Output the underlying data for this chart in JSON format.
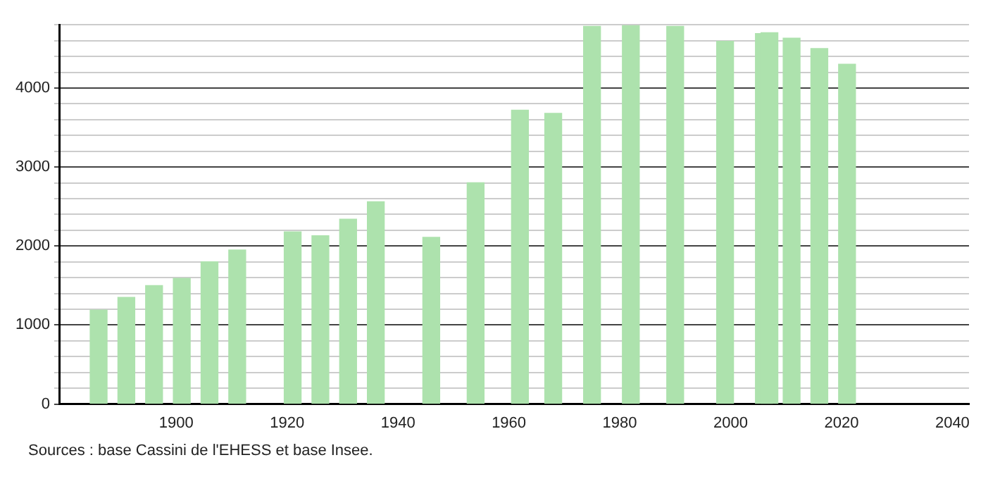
{
  "chart_data": {
    "type": "bar",
    "x": [
      1886,
      1891,
      1896,
      1901,
      1906,
      1911,
      1921,
      1926,
      1931,
      1936,
      1946,
      1954,
      1962,
      1968,
      1975,
      1982,
      1990,
      1999,
      2006,
      2007,
      2011,
      2016,
      2021
    ],
    "values": [
      1190,
      1350,
      1500,
      1590,
      1800,
      1950,
      2180,
      2130,
      2340,
      2560,
      2110,
      2800,
      3720,
      3680,
      4780,
      4790,
      4780,
      4590,
      4690,
      4700,
      4630,
      4500,
      4300
    ],
    "color": "#ade2ad",
    "xlim": [
      1879,
      2043
    ],
    "xticks": [
      1900,
      1920,
      1940,
      1960,
      1980,
      2000,
      2020,
      2040
    ],
    "ylim": [
      0,
      4800
    ],
    "yticks": [
      0,
      {
        "value": 200,
        "label": null
      },
      {
        "value": 400,
        "label": null
      },
      {
        "value": 600,
        "label": null
      },
      {
        "value": 800,
        "label": null
      },
      1000,
      {
        "value": 1200,
        "label": null
      },
      {
        "value": 1400,
        "label": null
      },
      {
        "value": 1600,
        "label": null
      },
      {
        "value": 1800,
        "label": null
      },
      2000,
      {
        "value": 2200,
        "label": null
      },
      {
        "value": 2400,
        "label": null
      },
      {
        "value": 2600,
        "label": null
      },
      {
        "value": 2800,
        "label": null
      },
      3000,
      {
        "value": 3200,
        "label": null
      },
      {
        "value": 3400,
        "label": null
      },
      {
        "value": 3600,
        "label": null
      },
      {
        "value": 3800,
        "label": null
      },
      4000,
      {
        "value": 4200,
        "label": null
      },
      {
        "value": 4400,
        "label": null
      },
      {
        "value": 4600,
        "label": null
      },
      {
        "value": 4800,
        "label": null
      }
    ],
    "grid": "y",
    "annotations": [
      "Sources : base Cassini de l'EHESS et base Insee."
    ]
  }
}
